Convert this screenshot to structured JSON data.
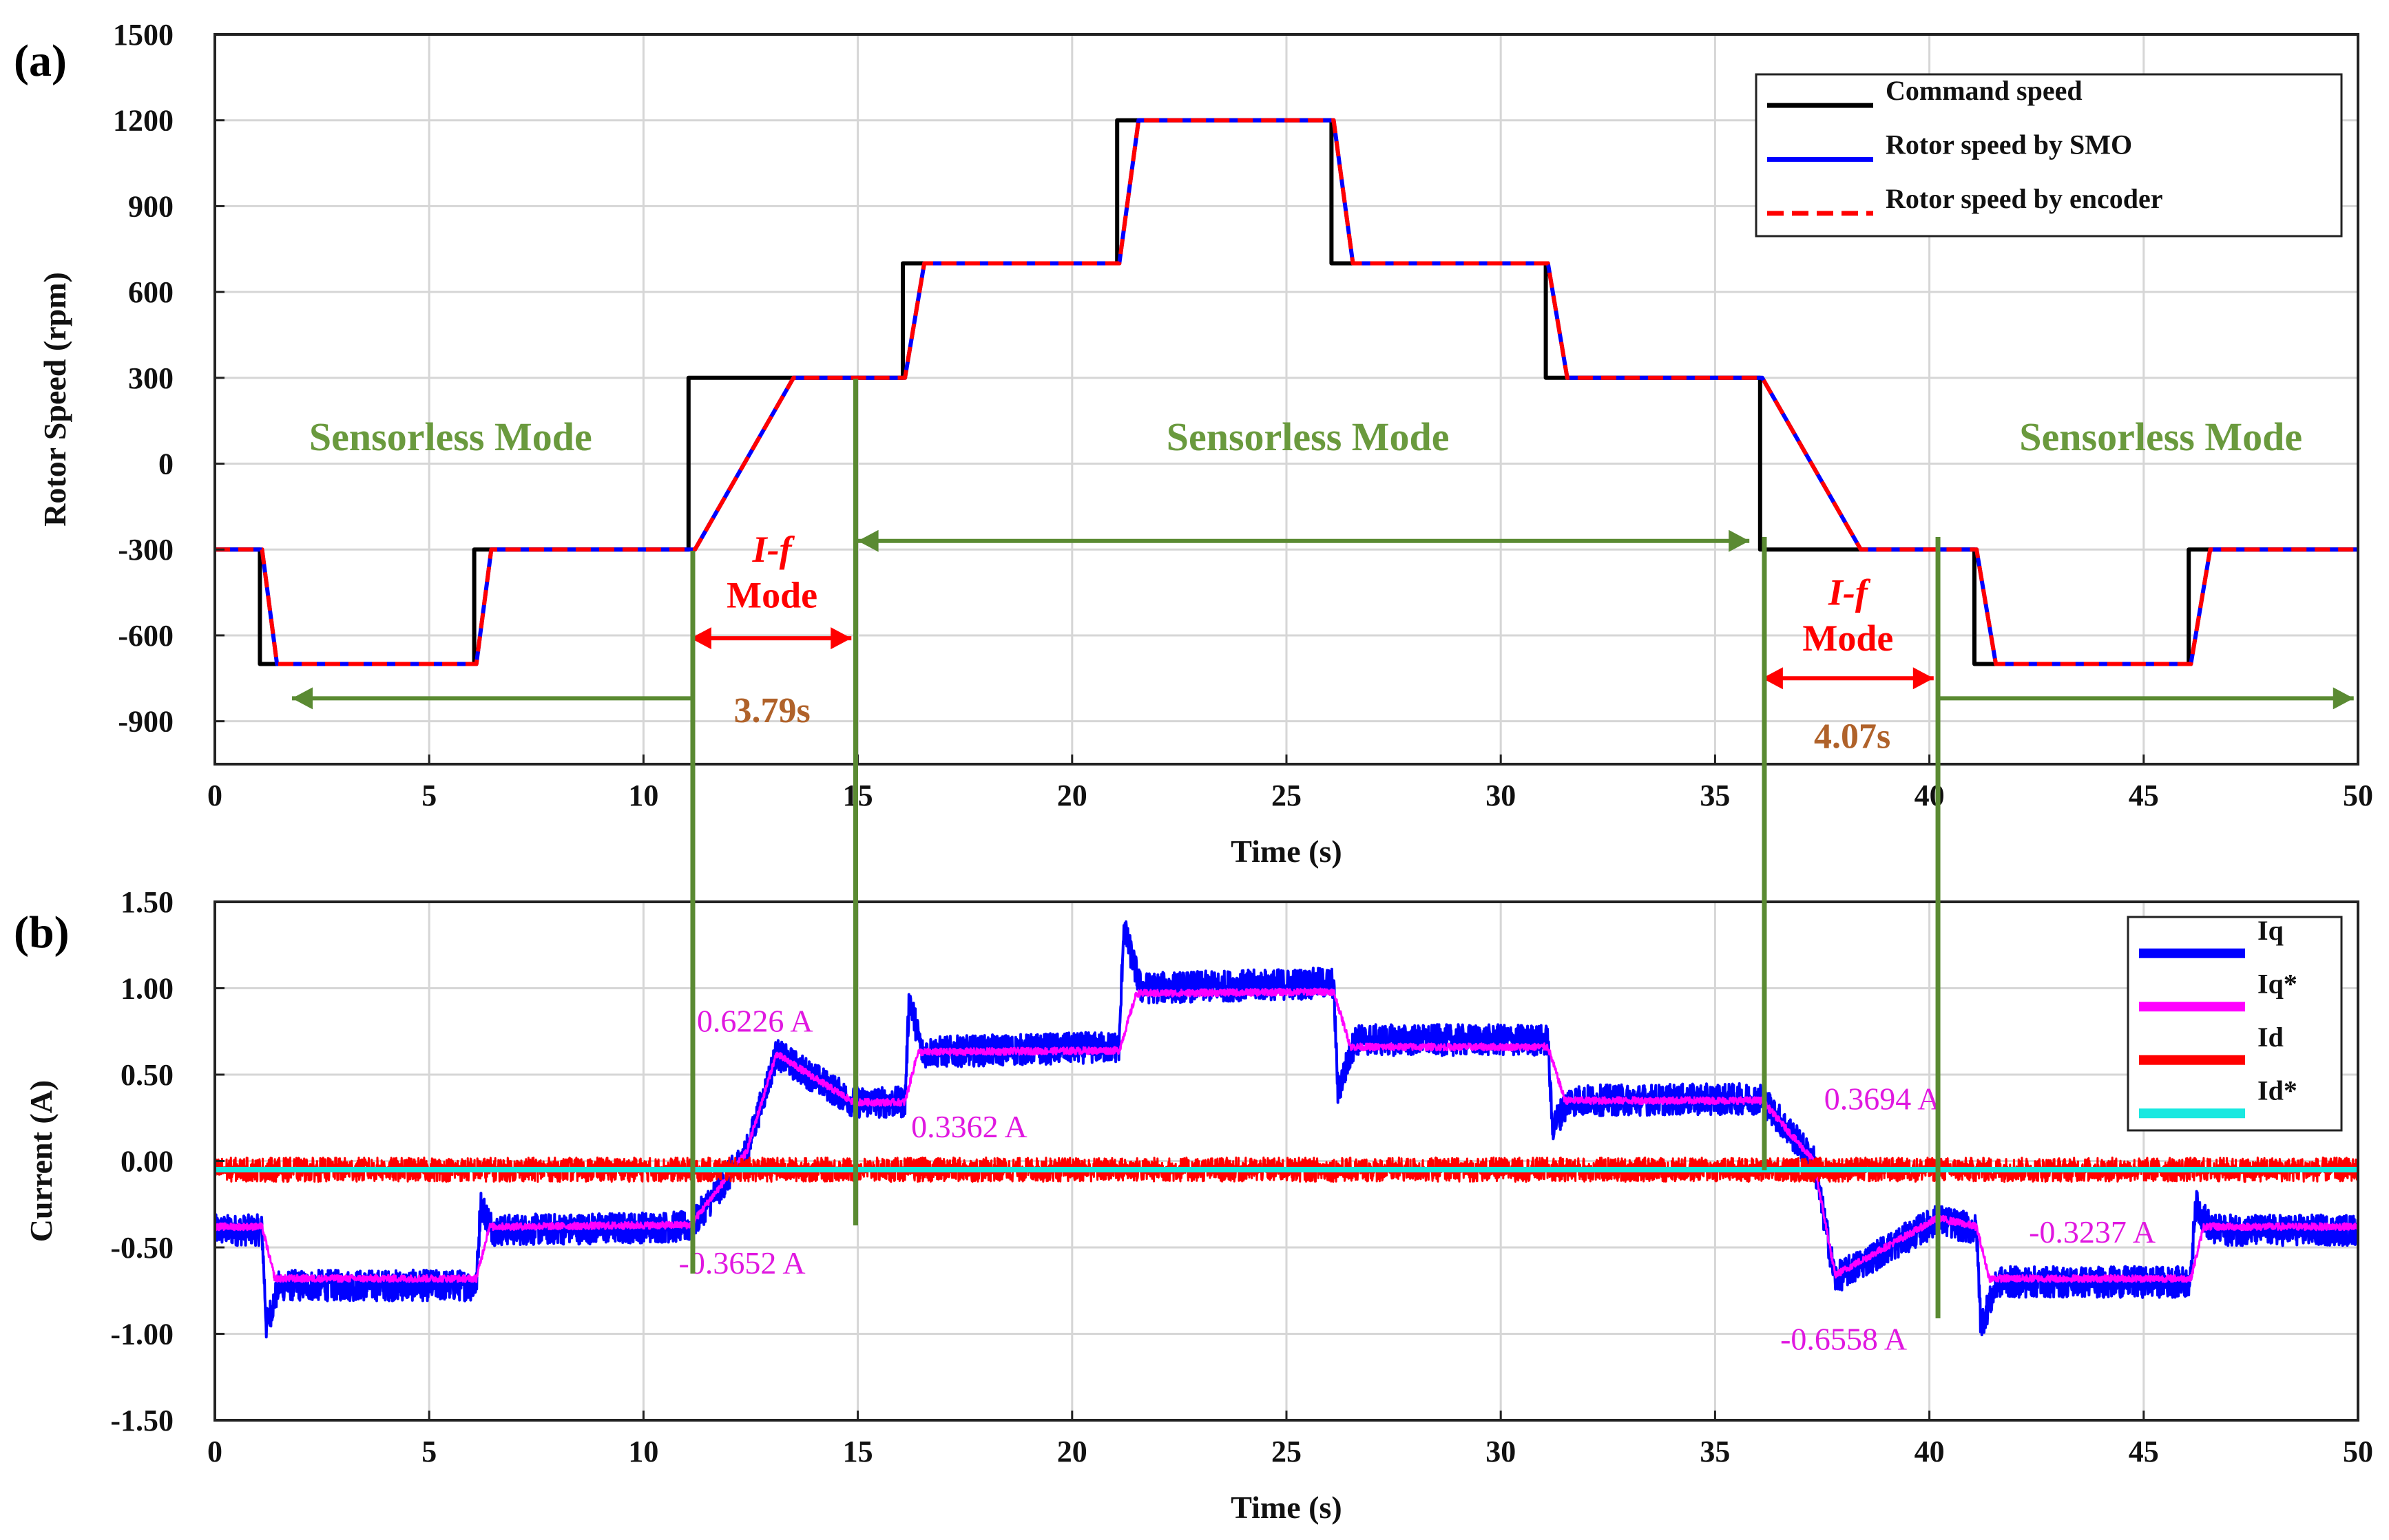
{
  "chart_data": [
    {
      "panel": "(a)",
      "type": "line",
      "xlabel": "Time (s)",
      "ylabel": "Rotor Speed (rpm)",
      "xlim": [
        0,
        50
      ],
      "ylim": [
        -1050,
        1500
      ],
      "xticks": [
        0,
        5,
        10,
        15,
        20,
        25,
        30,
        35,
        40,
        45,
        50
      ],
      "yticks": [
        -900,
        -600,
        -300,
        0,
        300,
        600,
        900,
        1200,
        1500
      ],
      "grid": true,
      "legend_position": "top-right",
      "series": [
        {
          "name": "Command speed",
          "color": "#000000",
          "style": "solid",
          "x": [
            0,
            1.05,
            1.05,
            6.05,
            6.05,
            11.05,
            11.05,
            16.05,
            16.05,
            21.05,
            21.05,
            26.05,
            26.05,
            31.05,
            31.05,
            36.05,
            36.05,
            41.05,
            41.05,
            46.05,
            46.05,
            50
          ],
          "y": [
            -300,
            -300,
            -700,
            -700,
            -300,
            -300,
            300,
            300,
            700,
            700,
            1200,
            1200,
            700,
            700,
            300,
            300,
            -300,
            -300,
            -700,
            -700,
            -300,
            -300
          ]
        },
        {
          "name": "Rotor speed by SMO",
          "color": "#0000ff",
          "style": "solid",
          "x": [
            0,
            1.1,
            1.45,
            6.1,
            6.45,
            11.2,
            13.5,
            16.1,
            16.55,
            21.1,
            21.55,
            26.1,
            26.55,
            31.1,
            31.55,
            36.1,
            38.4,
            41.1,
            41.55,
            46.1,
            46.55,
            50
          ],
          "y": [
            -300,
            -300,
            -700,
            -700,
            -300,
            -300,
            300,
            300,
            700,
            700,
            1200,
            1200,
            700,
            700,
            300,
            300,
            -300,
            -300,
            -700,
            -700,
            -300,
            -300
          ]
        },
        {
          "name": "Rotor speed by encoder",
          "color": "#ff0000",
          "style": "dashed",
          "x": [
            0,
            1.1,
            1.45,
            6.1,
            6.45,
            11.2,
            13.5,
            16.1,
            16.55,
            21.1,
            21.55,
            26.1,
            26.55,
            31.1,
            31.55,
            36.1,
            38.4,
            41.1,
            41.55,
            46.1,
            46.55,
            50
          ],
          "y": [
            -300,
            -300,
            -700,
            -700,
            -300,
            -300,
            300,
            300,
            700,
            700,
            1200,
            1200,
            700,
            700,
            300,
            300,
            -300,
            -300,
            -700,
            -700,
            -300,
            -300
          ]
        }
      ],
      "annotations": [
        {
          "text": "Sensorless Mode",
          "x": 5.5,
          "y": 90,
          "kind": "mode"
        },
        {
          "text": "Sensorless Mode",
          "x": 25.5,
          "y": 90,
          "kind": "mode"
        },
        {
          "text": "Sensorless Mode",
          "x": 45.4,
          "y": 90,
          "kind": "mode"
        },
        {
          "text": "I-f",
          "x": 13.0,
          "y": -300,
          "kind": "if"
        },
        {
          "text": "Mode",
          "x": 13.0,
          "y": -460,
          "kind": "if"
        },
        {
          "text": "3.79s",
          "x": 13.0,
          "y": -860,
          "kind": "dur"
        },
        {
          "text": "I-f",
          "x": 38.1,
          "y": -450,
          "kind": "if"
        },
        {
          "text": "Mode",
          "x": 38.1,
          "y": -610,
          "kind": "if"
        },
        {
          "text": "4.07s",
          "x": 38.2,
          "y": -950,
          "kind": "dur"
        }
      ],
      "arrows": [
        {
          "from": 11.1,
          "to": 1.8,
          "y": -820,
          "color": "#5a8a32"
        },
        {
          "from": 15.0,
          "to": 35.8,
          "y": -270,
          "color": "#5a8a32",
          "double": true
        },
        {
          "from": 40.2,
          "to": 49.9,
          "y": -820,
          "color": "#5a8a32"
        },
        {
          "from": 11.1,
          "to": 14.85,
          "y": -610,
          "color": "#ff0000",
          "double": true
        },
        {
          "from": 36.1,
          "to": 40.1,
          "y": -750,
          "color": "#ff0000",
          "double": true
        }
      ]
    },
    {
      "panel": "(b)",
      "type": "line",
      "xlabel": "Time (s)",
      "ylabel": "Current (A)",
      "xlim": [
        0,
        50
      ],
      "ylim": [
        -1.5,
        1.5
      ],
      "xticks": [
        0,
        5,
        10,
        15,
        20,
        25,
        30,
        35,
        40,
        45,
        50
      ],
      "yticks": [
        -1.5,
        -1.0,
        -0.5,
        0.0,
        0.5,
        1.0,
        1.5
      ],
      "ytick_labels": [
        "-1.50",
        "-1.00",
        "-0.50",
        "0.00",
        "0.50",
        "1.00",
        "1.50"
      ],
      "grid": true,
      "legend_position": "top-right",
      "series": [
        {
          "name": "Iq",
          "color": "#0000ff",
          "noise": 0.09,
          "x": [
            0,
            1.1,
            1.2,
            1.5,
            6.1,
            6.2,
            6.5,
            11.1,
            12.4,
            13.1,
            14.9,
            16.1,
            16.2,
            16.5,
            21.1,
            21.2,
            21.6,
            26.1,
            26.2,
            26.6,
            31.1,
            31.2,
            31.6,
            36.1,
            37.3,
            37.8,
            40.2,
            41.1,
            41.2,
            41.6,
            46.1,
            46.2,
            46.6,
            50
          ],
          "y": [
            -0.4,
            -0.4,
            -0.95,
            -0.72,
            -0.72,
            -0.25,
            -0.4,
            -0.38,
            0.05,
            0.62,
            0.34,
            0.34,
            0.95,
            0.63,
            0.66,
            1.35,
            1.0,
            1.03,
            0.4,
            0.7,
            0.7,
            0.2,
            0.35,
            0.36,
            0.0,
            -0.68,
            -0.34,
            -0.4,
            -0.95,
            -0.7,
            -0.7,
            -0.25,
            -0.4,
            -0.4
          ]
        },
        {
          "name": "Iq*",
          "color": "#ff00ff",
          "noise": 0.02,
          "x": [
            0,
            1.1,
            1.4,
            6.1,
            6.4,
            11.1,
            12.4,
            13.1,
            14.9,
            16.1,
            16.4,
            21.1,
            21.5,
            26.1,
            26.5,
            31.1,
            31.5,
            36.1,
            37.3,
            37.8,
            40.2,
            41.1,
            41.4,
            46.1,
            46.4,
            50
          ],
          "y": [
            -0.38,
            -0.38,
            -0.68,
            -0.68,
            -0.38,
            -0.37,
            0.05,
            0.62,
            0.34,
            0.34,
            0.63,
            0.64,
            0.97,
            0.98,
            0.66,
            0.66,
            0.35,
            0.35,
            0.0,
            -0.66,
            -0.33,
            -0.38,
            -0.68,
            -0.68,
            -0.38,
            -0.38
          ]
        },
        {
          "name": "Id",
          "color": "#ff0000",
          "noise": 0.07,
          "x": [
            0,
            50
          ],
          "y": [
            -0.05,
            -0.05
          ]
        },
        {
          "name": "Id*",
          "color": "#19e8e0",
          "noise": 0,
          "x": [
            0,
            50
          ],
          "y": [
            -0.05,
            -0.05
          ]
        }
      ],
      "annotations": [
        {
          "text": "0.6226 A",
          "x": 12.6,
          "y": 0.82
        },
        {
          "text": "0.3362 A",
          "x": 17.6,
          "y": 0.21
        },
        {
          "text": "-0.3652 A",
          "x": 12.3,
          "y": -0.58
        },
        {
          "text": "0.3694 A",
          "x": 38.9,
          "y": 0.37
        },
        {
          "text": "-0.3237 A",
          "x": 43.8,
          "y": -0.4
        },
        {
          "text": "-0.6558 A",
          "x": 38.0,
          "y": -1.02
        }
      ]
    }
  ],
  "mode_lines": [
    11.15,
    14.95,
    36.15,
    40.2
  ],
  "mode_line_color": "#5a8a32"
}
